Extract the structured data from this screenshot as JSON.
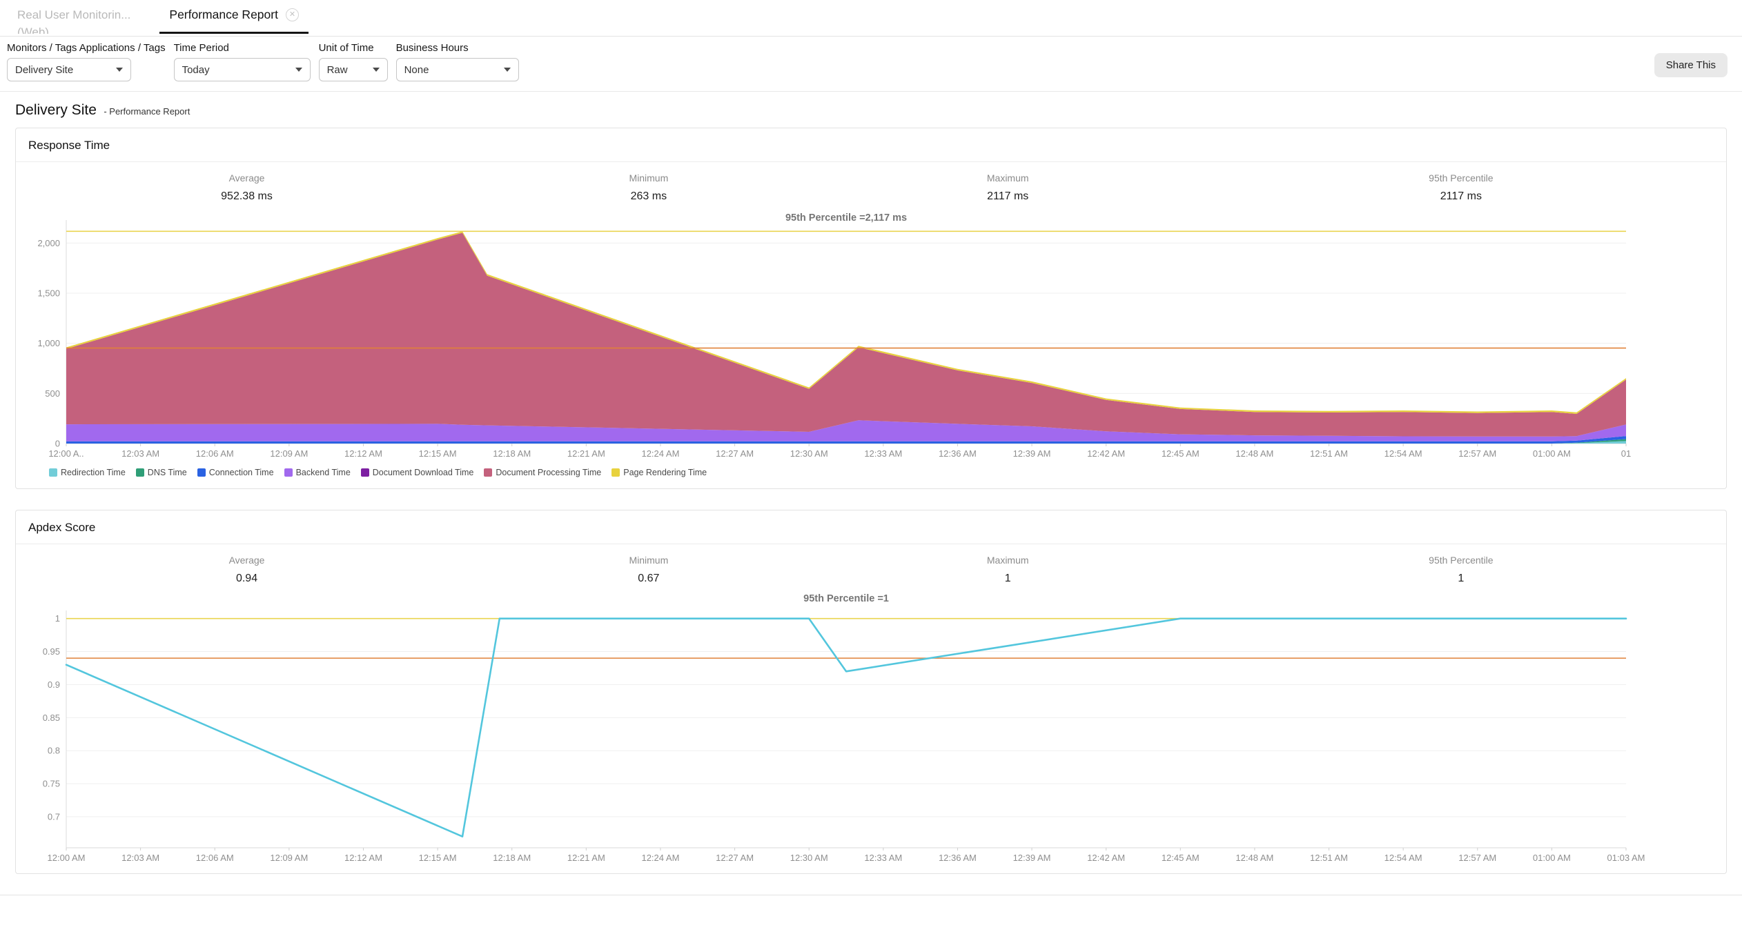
{
  "tabs": {
    "inactive": {
      "label": "Real User Monitorin...",
      "sublabel": "(Web)"
    },
    "active": {
      "label": "Performance Report"
    }
  },
  "filters": {
    "monitor": {
      "label": "Monitors / Tags Applications / Tags",
      "value": "Delivery Site"
    },
    "time_period": {
      "label": "Time Period",
      "value": "Today"
    },
    "unit_of_time": {
      "label": "Unit of Time",
      "value": "Raw"
    },
    "business_hours": {
      "label": "Business Hours",
      "value": "None"
    }
  },
  "share_button": "Share This",
  "heading": {
    "title": "Delivery Site",
    "subtitle": "- Performance Report"
  },
  "response_panel": {
    "title": "Response Time",
    "stats": [
      {
        "label": "Average",
        "value": "952.38 ms"
      },
      {
        "label": "Minimum",
        "value": "263 ms"
      },
      {
        "label": "Maximum",
        "value": "2117 ms"
      },
      {
        "label": "95th Percentile",
        "value": "2117 ms"
      }
    ]
  },
  "apdex_panel": {
    "title": "Apdex Score",
    "stats": [
      {
        "label": "Average",
        "value": "0.94"
      },
      {
        "label": "Minimum",
        "value": "0.67"
      },
      {
        "label": "Maximum",
        "value": "1"
      },
      {
        "label": "95th Percentile",
        "value": "1"
      }
    ]
  },
  "chart_data": [
    {
      "id": "response_time",
      "type": "area",
      "stacked": true,
      "title": "95th Percentile =2,117 ms",
      "unit": "ms",
      "x_minutes": [
        0,
        15,
        16,
        17,
        30,
        32,
        36,
        39,
        42,
        45,
        48,
        51,
        54,
        57,
        60,
        61,
        63
      ],
      "x_domain": [
        0,
        63
      ],
      "x_tick_labels": [
        "12:00 A..",
        "12:03 AM",
        "12:06 AM",
        "12:09 AM",
        "12:12 AM",
        "12:15 AM",
        "12:18 AM",
        "12:21 AM",
        "12:24 AM",
        "12:27 AM",
        "12:30 AM",
        "12:33 AM",
        "12:36 AM",
        "12:39 AM",
        "12:42 AM",
        "12:45 AM",
        "12:48 AM",
        "12:51 AM",
        "12:54 AM",
        "12:57 AM",
        "01:00 AM",
        "01"
      ],
      "y_tick_labels": [
        "0",
        "500",
        "1,000",
        "1,500",
        "2,000"
      ],
      "y_tick_values": [
        0,
        500,
        1000,
        1500,
        2000
      ],
      "ylim": [
        0,
        2202
      ],
      "grid": true,
      "legend_position": "bottom",
      "series": [
        {
          "name": "Redirection Time",
          "color": "#72cdd8",
          "values": [
            0,
            0,
            0,
            0,
            0,
            0,
            0,
            0,
            0,
            0,
            0,
            0,
            0,
            0,
            0,
            5,
            25
          ]
        },
        {
          "name": "DNS Time",
          "color": "#2f9e77",
          "values": [
            0,
            0,
            0,
            0,
            0,
            0,
            0,
            0,
            0,
            0,
            0,
            0,
            0,
            0,
            0,
            4,
            20
          ]
        },
        {
          "name": "Connection Time",
          "color": "#2a62e2",
          "values": [
            22,
            22,
            22,
            22,
            22,
            22,
            22,
            22,
            22,
            22,
            22,
            22,
            22,
            22,
            22,
            20,
            30
          ]
        },
        {
          "name": "Backend Time",
          "color": "#a169ee",
          "values": [
            170,
            175,
            165,
            160,
            95,
            210,
            175,
            150,
            100,
            70,
            60,
            55,
            50,
            48,
            48,
            45,
            115
          ]
        },
        {
          "name": "Document Download Time",
          "color": "#7d1fa2",
          "values": [
            0,
            0,
            0,
            0,
            0,
            0,
            0,
            0,
            0,
            0,
            0,
            0,
            0,
            0,
            0,
            0,
            0
          ]
        },
        {
          "name": "Document Processing Time",
          "color": "#c4617d",
          "values": [
            753,
            1838,
            1915,
            1493,
            428,
            728,
            533,
            433,
            313,
            253,
            233,
            233,
            243,
            235,
            245,
            222,
            448
          ]
        },
        {
          "name": "Page Rendering Time",
          "color": "#e8d23e",
          "values": [
            15,
            15,
            15,
            15,
            15,
            15,
            15,
            15,
            15,
            15,
            15,
            15,
            15,
            15,
            15,
            15,
            15
          ]
        }
      ],
      "ref_lines": [
        {
          "name": "average",
          "value": 952.38,
          "color": "#e08138"
        },
        {
          "name": "95th_percentile",
          "value": 2117,
          "color": "#e9d44f"
        }
      ]
    },
    {
      "id": "apdex_score",
      "type": "line",
      "stacked": false,
      "title": "95th Percentile =1",
      "x_minutes": [
        0,
        16,
        17.5,
        30,
        31.5,
        45,
        63
      ],
      "x_domain": [
        0,
        63
      ],
      "x_tick_labels": [
        "12:00 AM",
        "12:03 AM",
        "12:06 AM",
        "12:09 AM",
        "12:12 AM",
        "12:15 AM",
        "12:18 AM",
        "12:21 AM",
        "12:24 AM",
        "12:27 AM",
        "12:30 AM",
        "12:33 AM",
        "12:36 AM",
        "12:39 AM",
        "12:42 AM",
        "12:45 AM",
        "12:48 AM",
        "12:51 AM",
        "12:54 AM",
        "12:57 AM",
        "01:00 AM",
        "01:03 AM"
      ],
      "y_tick_labels": [
        "1",
        "0.95",
        "0.9",
        "0.85",
        "0.8",
        "0.75",
        "0.7"
      ],
      "y_tick_values": [
        1,
        0.95,
        0.9,
        0.85,
        0.8,
        0.75,
        0.7
      ],
      "ylim": [
        0.653,
        1.008
      ],
      "grid": true,
      "legend_position": "none",
      "series": [
        {
          "name": "Apdex Score",
          "color": "#53c6dd",
          "values": [
            0.93,
            0.67,
            1,
            1,
            0.92,
            1,
            1
          ]
        }
      ],
      "ref_lines": [
        {
          "name": "average",
          "value": 0.94,
          "color": "#e08138"
        },
        {
          "name": "95th_percentile",
          "value": 1,
          "color": "#e9d44f"
        }
      ]
    }
  ]
}
